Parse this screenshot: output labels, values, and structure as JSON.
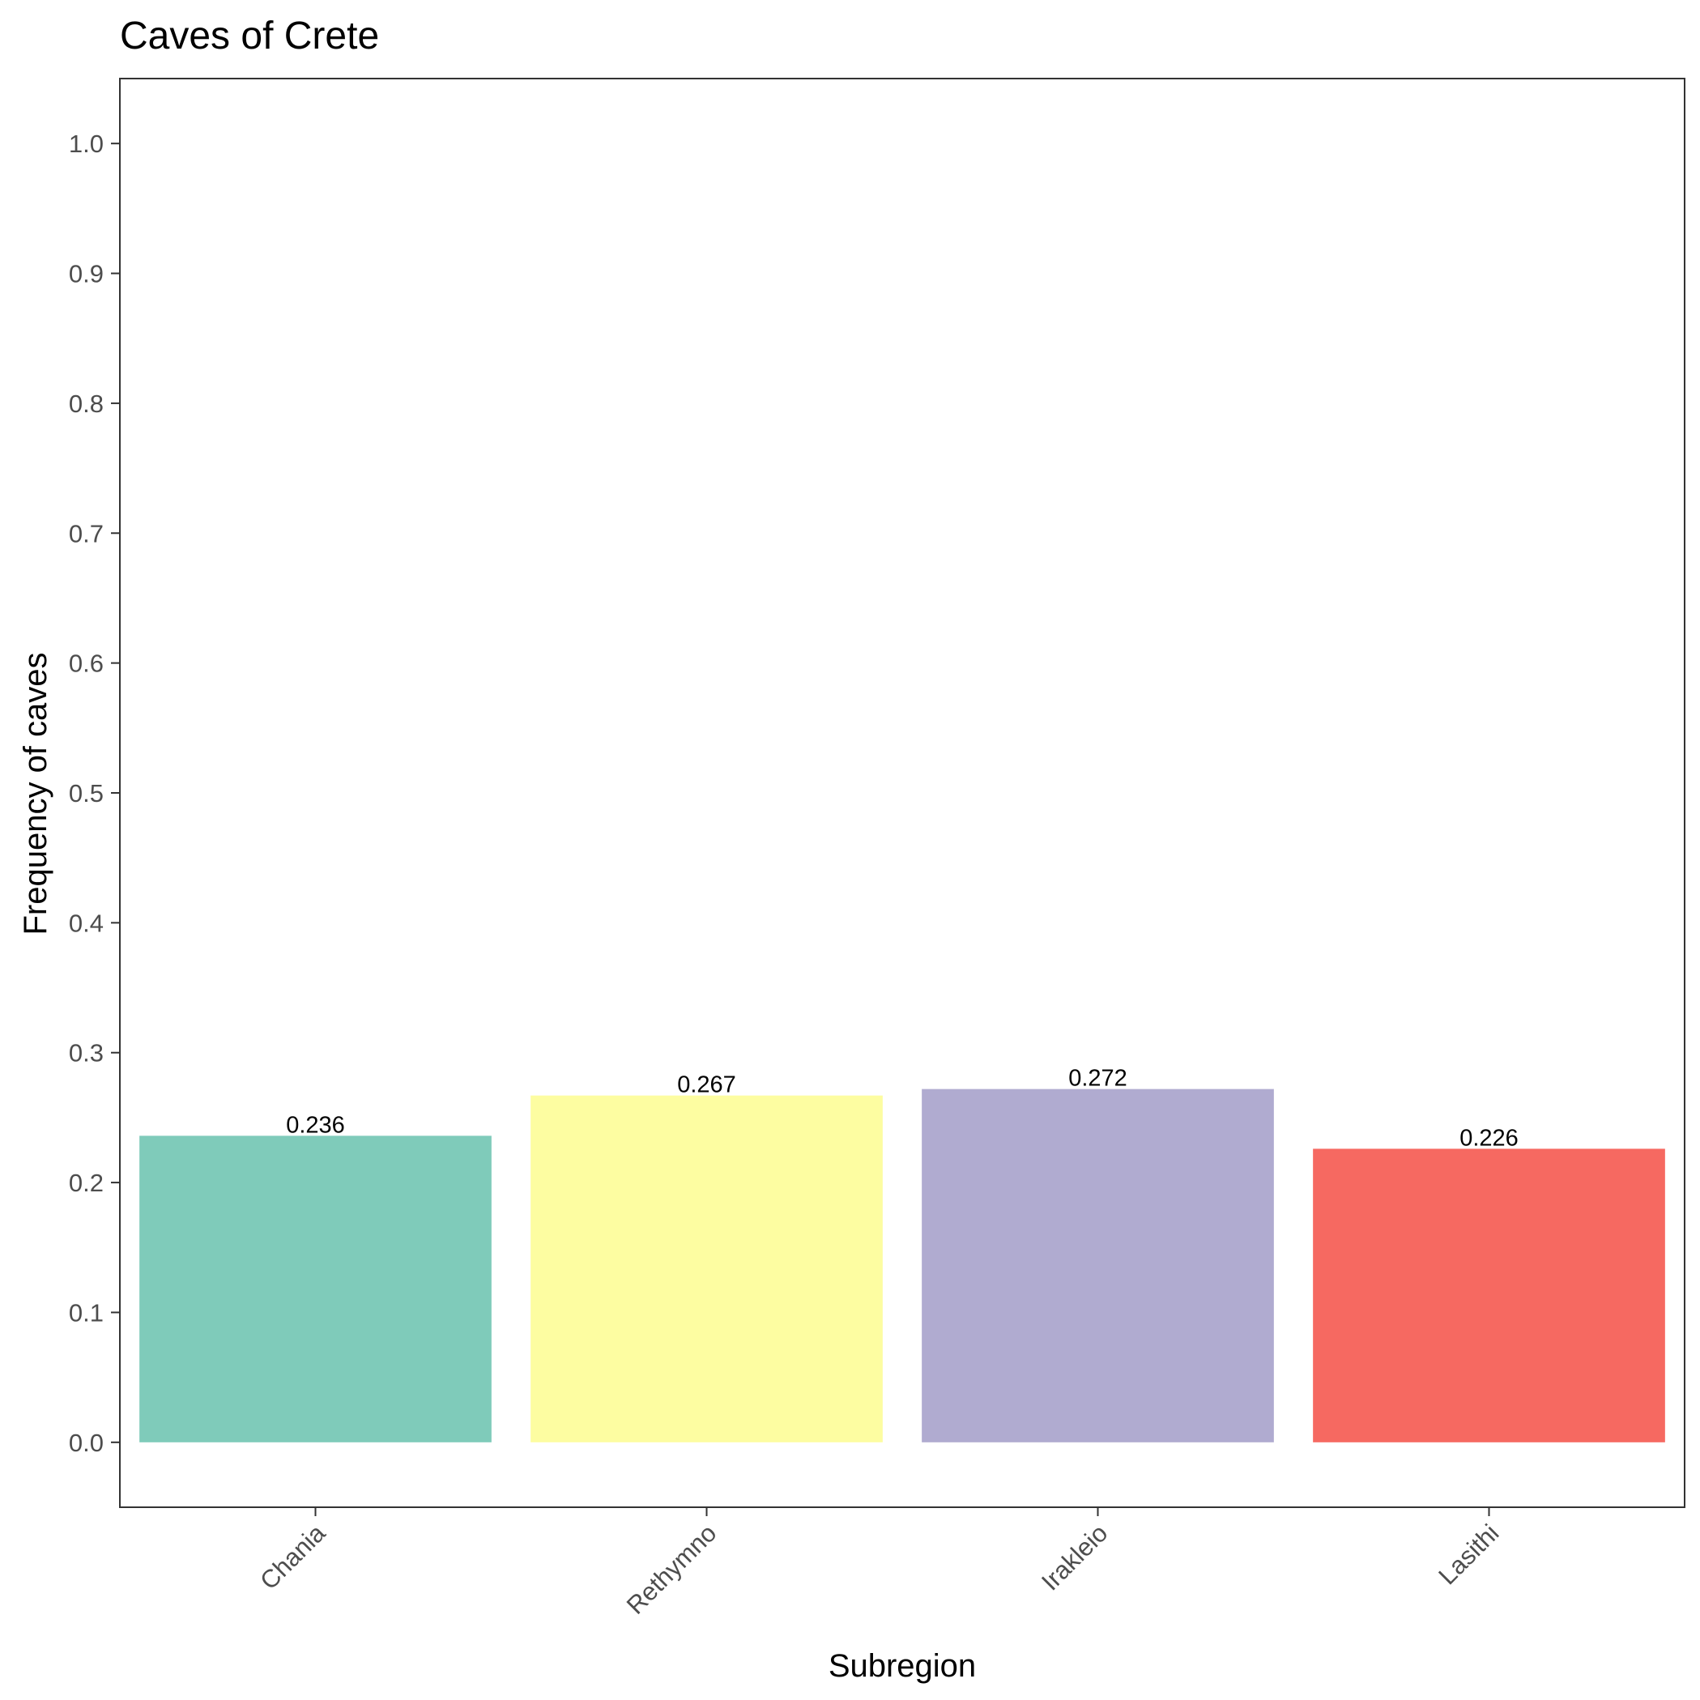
{
  "chart_data": {
    "type": "bar",
    "title": "Caves of Crete",
    "xlabel": "Subregion",
    "ylabel": "Frequency of caves",
    "categories": [
      "Chania",
      "Rethymno",
      "Irakleio",
      "Lasithi"
    ],
    "values": [
      0.236,
      0.267,
      0.272,
      0.226
    ],
    "data_labels": [
      "0.236",
      "0.267",
      "0.272",
      "0.226"
    ],
    "colors": [
      "#7fcbba",
      "#fdfda1",
      "#b0abd0",
      "#f66961"
    ],
    "ylim": [
      -0.05,
      1.05
    ],
    "yticks": [
      0.0,
      0.1,
      0.2,
      0.3,
      0.4,
      0.5,
      0.6,
      0.7,
      0.8,
      0.9,
      1.0
    ],
    "ytick_labels": [
      "0.0",
      "0.1",
      "0.2",
      "0.3",
      "0.4",
      "0.5",
      "0.6",
      "0.7",
      "0.8",
      "0.9",
      "1.0"
    ],
    "grid": false,
    "legend": "none",
    "x_tick_rotation_deg": 45
  }
}
